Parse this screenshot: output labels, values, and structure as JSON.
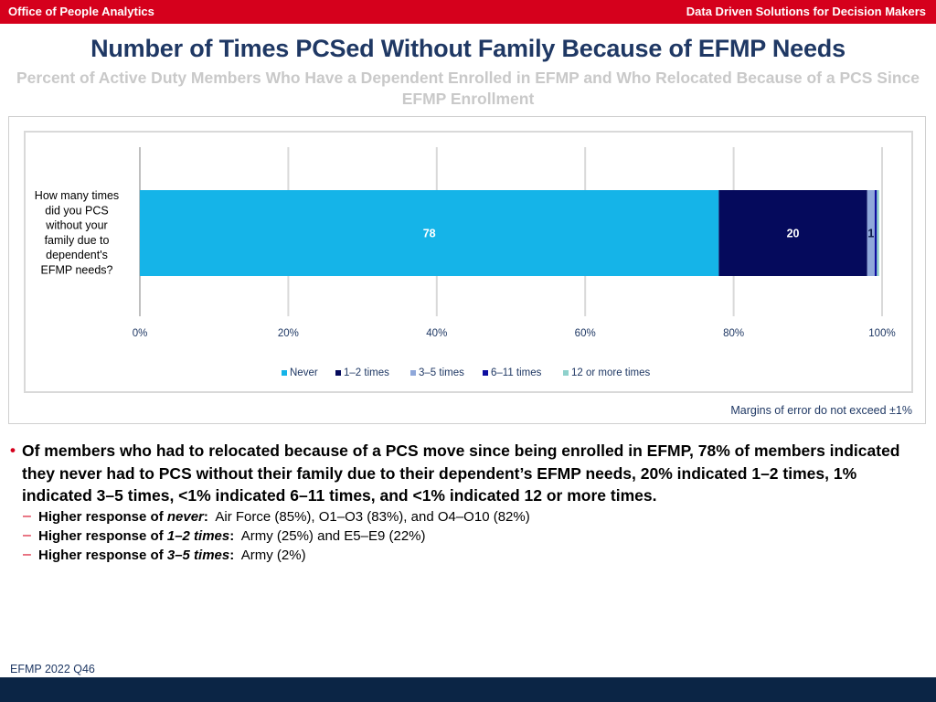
{
  "header": {
    "left": "Office of People Analytics",
    "right": "Data Driven Solutions for Decision Makers"
  },
  "title": "Number of Times PCSed Without Family Because of EFMP Needs",
  "subtitle": "Percent of Active Duty Members Who Have a Dependent Enrolled in EFMP and Who Relocated Because of a PCS Since EFMP Enrollment",
  "chart_data": {
    "type": "bar",
    "orientation": "horizontal",
    "stacked": true,
    "categories": [
      "How many times did you PCS without your family due to dependent's EFMP needs?"
    ],
    "series": [
      {
        "name": "Never",
        "values": [
          78
        ],
        "color": "#15b4e8",
        "label": "78"
      },
      {
        "name": "1–2 times",
        "values": [
          20
        ],
        "color": "#050a5c",
        "label": "20"
      },
      {
        "name": "3–5 times",
        "values": [
          1
        ],
        "color": "#8fa8da",
        "label": "1"
      },
      {
        "name": "6–11 times",
        "values": [
          0.3
        ],
        "color": "#0e0ea0",
        "label": ""
      },
      {
        "name": "12 or more times",
        "values": [
          0.3
        ],
        "color": "#8fd1cc",
        "label": ""
      }
    ],
    "xlim": [
      0,
      100
    ],
    "xticks": [
      "0%",
      "20%",
      "40%",
      "60%",
      "80%",
      "100%"
    ],
    "grid": true,
    "legend_position": "bottom"
  },
  "margin_of_error": "Margins of error do not exceed ±1%",
  "bullet": {
    "main": "Of members who had to relocated because of a PCS move since being enrolled in EFMP, 78% of members indicated they never had to PCS without their family due to their dependent’s EFMP needs, 20% indicated 1–2 times, 1% indicated 3–5 times, <1% indicated 6–11 times, and <1% indicated 12 or more times.",
    "subs": [
      {
        "prefix": "Higher response of ",
        "em": "never",
        "suffix": ":",
        "text": "  Air Force (85%), O1–O3 (83%), and O4–O10 (82%)"
      },
      {
        "prefix": "Higher response of ",
        "em": "1–2 times",
        "suffix": ":",
        "text": "  Army (25%) and E5–E9 (22%)"
      },
      {
        "prefix": "Higher response of ",
        "em": "3–5 times",
        "suffix": ":",
        "text": "  Army (2%)"
      }
    ]
  },
  "footnote": "EFMP 2022 Q46"
}
